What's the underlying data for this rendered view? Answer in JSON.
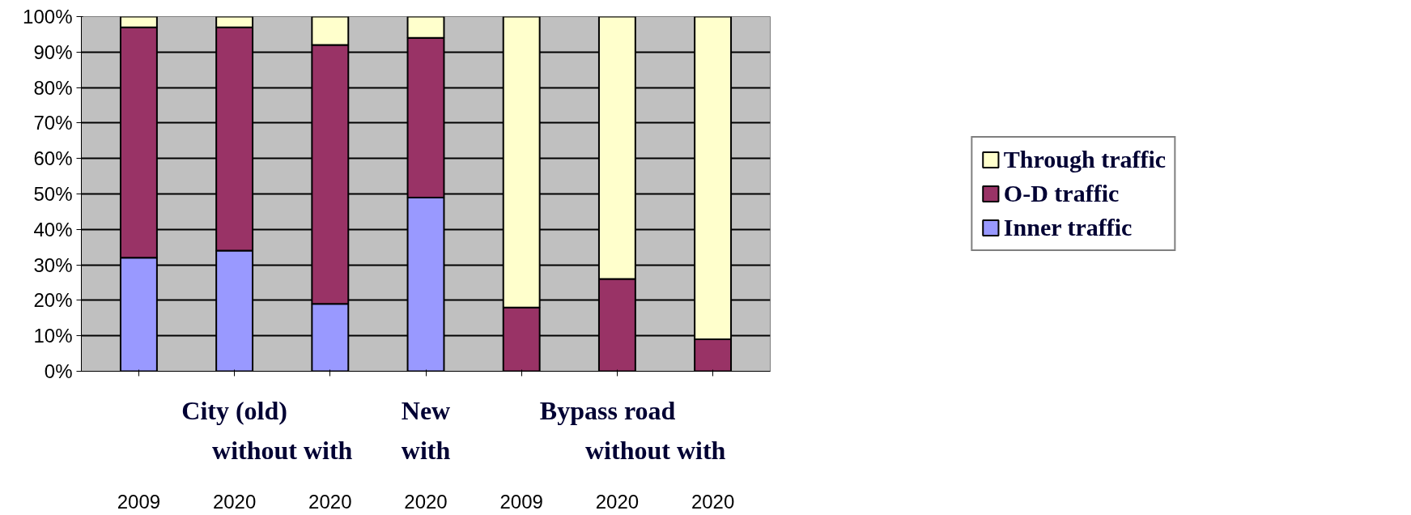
{
  "chart_data": {
    "type": "bar",
    "stacked": true,
    "categories": [
      "2009",
      "2020",
      "2020",
      "2020",
      "2009",
      "2020",
      "2020"
    ],
    "series": [
      {
        "name": "Inner traffic",
        "color": "#9999ff",
        "values": [
          32,
          34,
          19,
          49,
          0,
          0,
          0
        ]
      },
      {
        "name": "O-D traffic",
        "color": "#993366",
        "values": [
          65,
          63,
          73,
          45,
          18,
          26,
          9
        ]
      },
      {
        "name": "Through traffic",
        "color": "#ffffcc",
        "values": [
          3,
          3,
          8,
          6,
          82,
          74,
          91
        ]
      }
    ],
    "ylim": [
      0,
      100
    ],
    "yticks": [
      {
        "value": 0,
        "label": "0%"
      },
      {
        "value": 10,
        "label": "10%"
      },
      {
        "value": 20,
        "label": "20%"
      },
      {
        "value": 30,
        "label": "30%"
      },
      {
        "value": 40,
        "label": "40%"
      },
      {
        "value": 50,
        "label": "50%"
      },
      {
        "value": 60,
        "label": "60%"
      },
      {
        "value": 70,
        "label": "70%"
      },
      {
        "value": 80,
        "label": "80%"
      },
      {
        "value": 90,
        "label": "90%"
      },
      {
        "value": 100,
        "label": "100%"
      }
    ],
    "grid": "y",
    "legend": "right",
    "annotations": [
      "City (old)",
      "without with",
      "New",
      "with",
      "Bypass road",
      "without with"
    ]
  }
}
